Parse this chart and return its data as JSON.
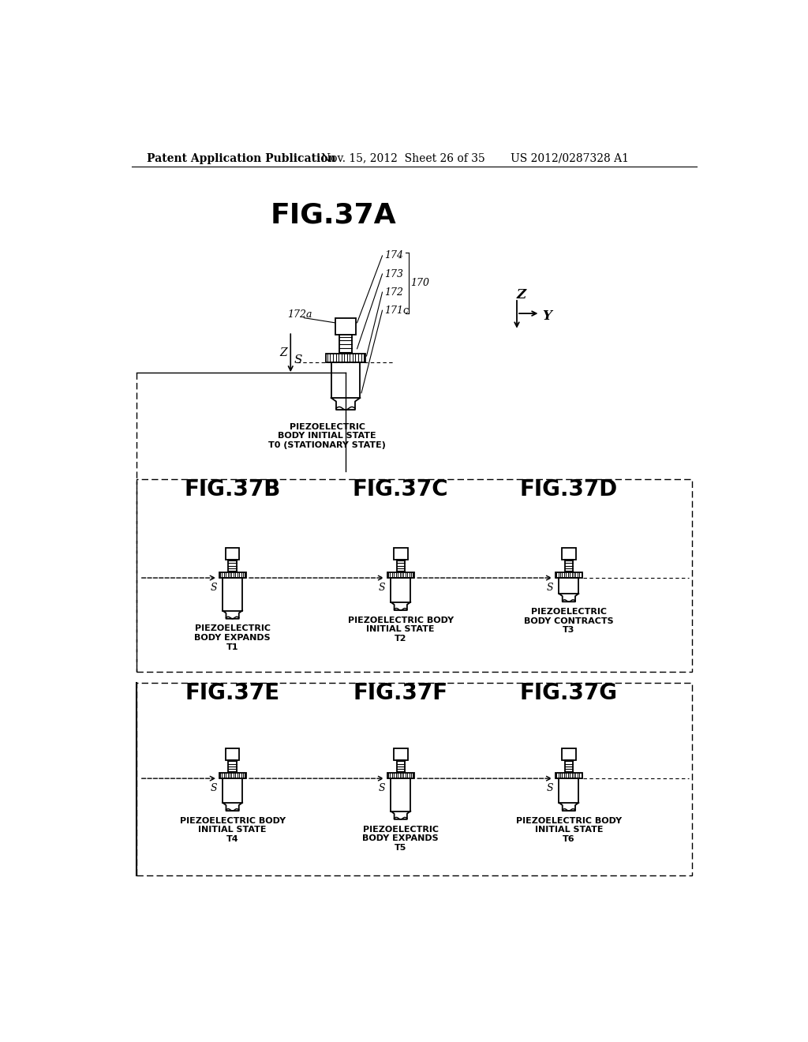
{
  "bg_color": "#ffffff",
  "header_text": "Patent Application Publication",
  "header_date": "Nov. 15, 2012  Sheet 26 of 35",
  "header_patent": "US 2012/0287328 A1",
  "fig_title_A": "FIG.37A",
  "fig_title_B": "FIG.37B",
  "fig_title_C": "FIG.37C",
  "fig_title_D": "FIG.37D",
  "fig_title_E": "FIG.37E",
  "fig_title_F": "FIG.37F",
  "fig_title_G": "FIG.37G",
  "label_A_caption": "PIEZOELECTRIC\nBODY INITIAL STATE\nT0 (STATIONARY STATE)",
  "label_B_caption": "PIEZOELECTRIC\nBODY EXPANDS\nT1",
  "label_C_caption": "PIEZOELECTRIC BODY\nINITIAL STATE\nT2",
  "label_D_caption": "PIEZOELECTRIC\nBODY CONTRACTS\nT3",
  "label_E_caption": "PIEZOELECTRIC BODY\nINITIAL STATE\nT4",
  "label_F_caption": "PIEZOELECTRIC\nBODY EXPANDS\nT5",
  "label_G_caption": "PIEZOELECTRIC BODY\nINITIAL STATE\nT6"
}
